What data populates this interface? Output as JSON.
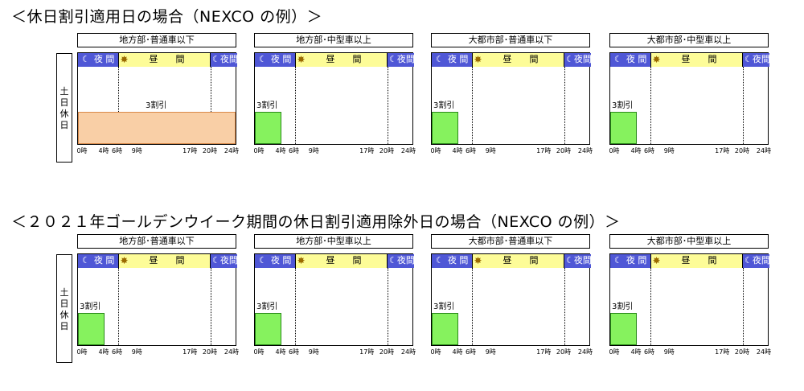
{
  "sections": [
    {
      "title": "＜休日割引適用日の場合（NEXCO の例）＞",
      "row_label": "土日休日",
      "panels": [
        {
          "title": "地方部･普通車以下",
          "discount": "3割引",
          "bar": "all"
        },
        {
          "title": "地方部･中型車以上",
          "discount": "3割引",
          "bar": "night"
        },
        {
          "title": "大都市部･普通車以下",
          "discount": "3割引",
          "bar": "night"
        },
        {
          "title": "大都市部･中型車以上",
          "discount": "3割引",
          "bar": "night"
        }
      ]
    },
    {
      "title": "＜２０２１年ゴールデンウイーク期間の休日割引適用除外日の場合（NEXCO の例）＞",
      "row_label": "土日休日",
      "panels": [
        {
          "title": "地方部･普通車以下",
          "discount": "3割引",
          "bar": "night"
        },
        {
          "title": "地方部･中型車以上",
          "discount": "3割引",
          "bar": "night"
        },
        {
          "title": "大都市部･普通車以下",
          "discount": "3割引",
          "bar": "night"
        },
        {
          "title": "大都市部･中型車以上",
          "discount": "3割引",
          "bar": "night"
        }
      ]
    }
  ],
  "bands": {
    "night_label": "夜 間",
    "day_label": "昼　　間",
    "night_label_compact": "夜間",
    "moon_icon": "crescent-moon-icon",
    "sun_icon": "sun-icon"
  },
  "ticks": [
    {
      "hour": 0,
      "label": "0時"
    },
    {
      "hour": 4,
      "label": "4時"
    },
    {
      "hour": 6,
      "label": "6時"
    },
    {
      "hour": 9,
      "label": "9時"
    },
    {
      "hour": 17,
      "label": "17時"
    },
    {
      "hour": 20,
      "label": "20時"
    },
    {
      "hour": 24,
      "label": "24時"
    }
  ],
  "colors": {
    "night": "#4f57d6",
    "day": "#fdfc98",
    "discount_bar": "#86f25e",
    "discount_bar_all_day": "#f9cfa6"
  }
}
